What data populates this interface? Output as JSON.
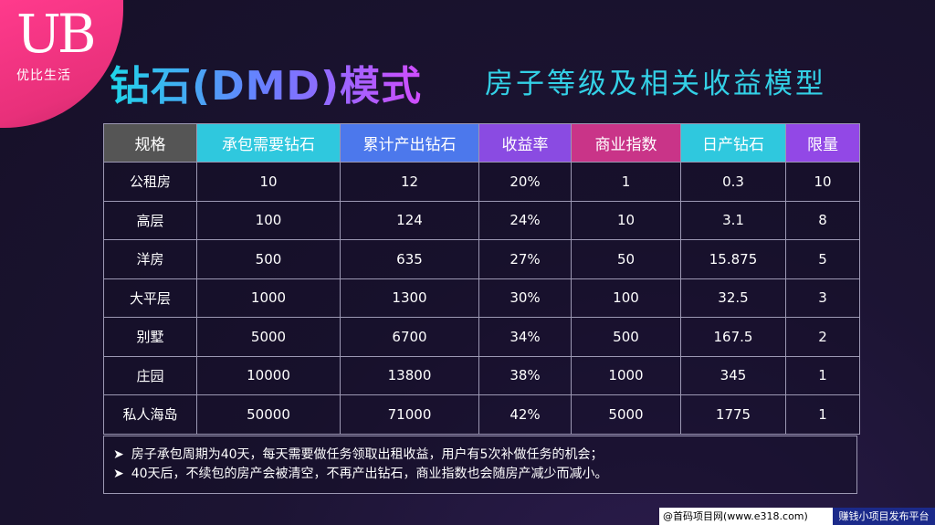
{
  "logo": {
    "mark": "UB",
    "subtitle": "优比生活"
  },
  "title": {
    "main": "钻石(DMD)模式",
    "sub": "房子等级及相关收益模型"
  },
  "table": {
    "headers": [
      {
        "label": "规格",
        "color": "#555555"
      },
      {
        "label": "承包需要钻石",
        "color": "#2fc8de"
      },
      {
        "label": "累计产出钻石",
        "color": "#4c78ec"
      },
      {
        "label": "收益率",
        "color": "#8a4be2"
      },
      {
        "label": "商业指数",
        "color": "#c93488"
      },
      {
        "label": "日产钻石",
        "color": "#2fc8de"
      },
      {
        "label": "限量",
        "color": "#9248e6"
      }
    ],
    "rows": [
      [
        "公租房",
        "10",
        "12",
        "20%",
        "1",
        "0.3",
        "10"
      ],
      [
        "高层",
        "100",
        "124",
        "24%",
        "10",
        "3.1",
        "8"
      ],
      [
        "洋房",
        "500",
        "635",
        "27%",
        "50",
        "15.875",
        "5"
      ],
      [
        "大平层",
        "1000",
        "1300",
        "30%",
        "100",
        "32.5",
        "3"
      ],
      [
        "别墅",
        "5000",
        "6700",
        "34%",
        "500",
        "167.5",
        "2"
      ],
      [
        "庄园",
        "10000",
        "13800",
        "38%",
        "1000",
        "345",
        "1"
      ],
      [
        "私人海岛",
        "50000",
        "71000",
        "42%",
        "5000",
        "1775",
        "1"
      ]
    ]
  },
  "notes": [
    "房子承包周期为40天，每天需要做任务领取出租收益，用户有5次补做任务的机会；",
    "40天后，不续包的房产会被清空，不再产出钻石，商业指数也会随房产减少而减小。"
  ],
  "note_arrow": "➤",
  "watermark": {
    "left": "@首码项目网(www.e318.com)",
    "right": "赚钱小项目发布平台"
  }
}
